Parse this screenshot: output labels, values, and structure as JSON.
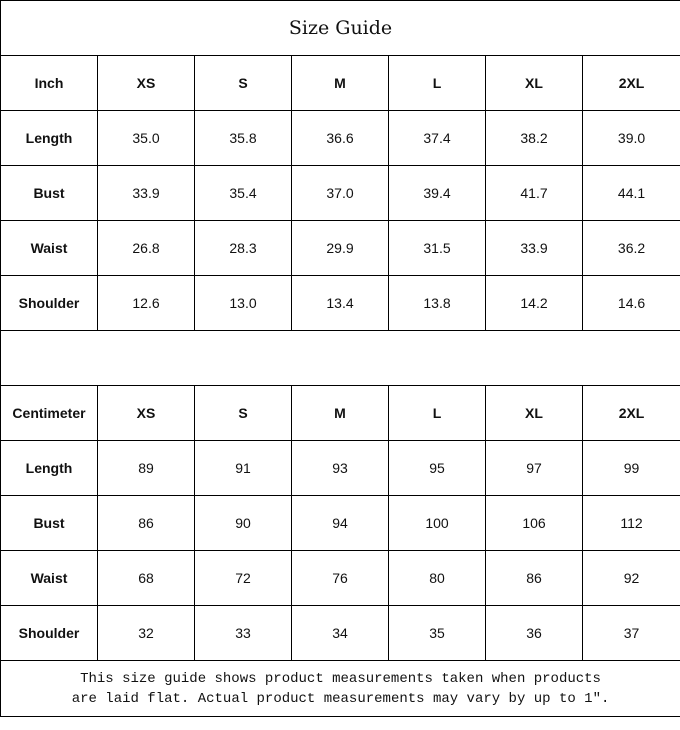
{
  "title": "Size Guide",
  "inch_table": {
    "unit_label": "Inch",
    "sizes": [
      "XS",
      "S",
      "M",
      "L",
      "XL",
      "2XL"
    ],
    "rows": [
      {
        "label": "Length",
        "values": [
          "35.0",
          "35.8",
          "36.6",
          "37.4",
          "38.2",
          "39.0"
        ]
      },
      {
        "label": "Bust",
        "values": [
          "33.9",
          "35.4",
          "37.0",
          "39.4",
          "41.7",
          "44.1"
        ]
      },
      {
        "label": "Waist",
        "values": [
          "26.8",
          "28.3",
          "29.9",
          "31.5",
          "33.9",
          "36.2"
        ]
      },
      {
        "label": "Shoulder",
        "values": [
          "12.6",
          "13.0",
          "13.4",
          "13.8",
          "14.2",
          "14.6"
        ]
      }
    ]
  },
  "cm_table": {
    "unit_label": "Centimeter",
    "sizes": [
      "XS",
      "S",
      "M",
      "L",
      "XL",
      "2XL"
    ],
    "rows": [
      {
        "label": "Length",
        "values": [
          "89",
          "91",
          "93",
          "95",
          "97",
          "99"
        ]
      },
      {
        "label": "Bust",
        "values": [
          "86",
          "90",
          "94",
          "100",
          "106",
          "112"
        ]
      },
      {
        "label": "Waist",
        "values": [
          "68",
          "72",
          "76",
          "80",
          "86",
          "92"
        ]
      },
      {
        "label": "Shoulder",
        "values": [
          "32",
          "33",
          "34",
          "35",
          "36",
          "37"
        ]
      }
    ]
  },
  "footer": {
    "line1": "This size guide shows product measurements taken when products",
    "line2": "are laid flat. Actual product measurements may vary by up to 1″."
  }
}
